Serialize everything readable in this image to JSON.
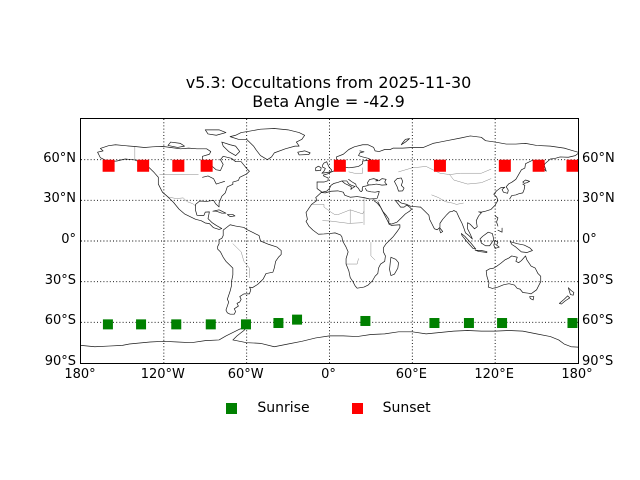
{
  "figure": {
    "title_line1": "v5.3: Occultations from 2025-11-30",
    "title_line2": "Beta Angle = -42.9"
  },
  "axes": {
    "x_ticks": [
      {
        "label": "180°",
        "lon": -180
      },
      {
        "label": "120°W",
        "lon": -120
      },
      {
        "label": "60°W",
        "lon": -60
      },
      {
        "label": "0°",
        "lon": 0
      },
      {
        "label": "60°E",
        "lon": 60
      },
      {
        "label": "120°E",
        "lon": 120
      },
      {
        "label": "180°",
        "lon": 180
      }
    ],
    "y_ticks": [
      {
        "label": "60°N",
        "lat": 60
      },
      {
        "label": "30°N",
        "lat": 30
      },
      {
        "label": "0°",
        "lat": 0
      },
      {
        "label": "30°S",
        "lat": -30
      },
      {
        "label": "60°S",
        "lat": -60
      },
      {
        "label": "90°S",
        "lat": -90
      }
    ]
  },
  "legend": {
    "items": [
      {
        "label": "Sunrise",
        "color": "#008000"
      },
      {
        "label": "Sunset",
        "color": "#ff0000"
      }
    ]
  },
  "chart_data": {
    "type": "scatter",
    "title": "v5.3: Occultations from 2025-11-30",
    "subtitle": "Beta Angle = -42.9",
    "xlabel": "",
    "ylabel": "",
    "xlim": [
      -180,
      180
    ],
    "ylim": [
      -90,
      90
    ],
    "x_tick_labels": [
      "180°",
      "120°W",
      "60°W",
      "0°",
      "60°E",
      "120°E",
      "180°"
    ],
    "y_tick_labels": [
      "60°N",
      "30°N",
      "0°",
      "30°S",
      "60°S",
      "90°S"
    ],
    "grid": "dotted black, longitude every 60°, latitude every 30°, labels on left, right and bottom",
    "basemap": "world coastlines with country borders, equirectangular projection",
    "legend_position": "lower center",
    "series": [
      {
        "name": "Sunrise",
        "marker": "square",
        "color": "#008000",
        "marker_size_px": 10,
        "points_lon_lat": [
          [
            -160.5,
            -61.5
          ],
          [
            -136.5,
            -61.5
          ],
          [
            -111,
            -61.5
          ],
          [
            -86,
            -61.5
          ],
          [
            -60.5,
            -61.5
          ],
          [
            -37,
            -60.5
          ],
          [
            -23.5,
            -58
          ],
          [
            26,
            -59
          ],
          [
            76,
            -60.5
          ],
          [
            101,
            -60.5
          ],
          [
            125,
            -60.5
          ],
          [
            176,
            -60.5
          ]
        ]
      },
      {
        "name": "Sunset",
        "marker": "square",
        "color": "#ff0000",
        "marker_size_px": 12,
        "points_lon_lat": [
          [
            -160,
            55.5
          ],
          [
            -135,
            55.5
          ],
          [
            -109.5,
            55.5
          ],
          [
            -89,
            55.5
          ],
          [
            7.5,
            55.5
          ],
          [
            32,
            55.5
          ],
          [
            80,
            55.5
          ],
          [
            127,
            55.5
          ],
          [
            151.5,
            55.5
          ],
          [
            176,
            55.5
          ]
        ]
      }
    ]
  }
}
